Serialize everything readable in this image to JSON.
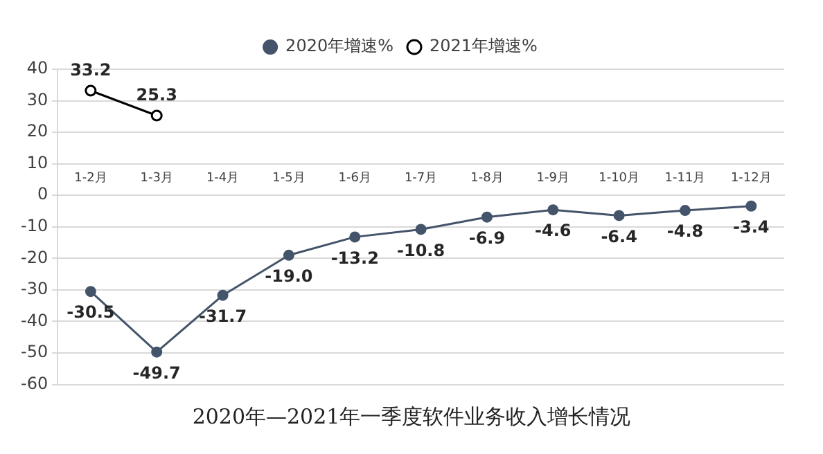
{
  "chart_data": {
    "type": "line",
    "title": "2020年—2021年一季度软件业务收入增长情况",
    "categories": [
      "1-2月",
      "1-3月",
      "1-4月",
      "1-5月",
      "1-6月",
      "1-7月",
      "1-8月",
      "1-9月",
      "1-10月",
      "1-11月",
      "1-12月"
    ],
    "series": [
      {
        "name": "2020年增速%",
        "color": "#44546a",
        "values": [
          -30.5,
          -49.7,
          -31.7,
          -19.0,
          -13.2,
          -10.8,
          -6.9,
          -4.6,
          -6.4,
          -4.8,
          -3.4
        ],
        "value_labels": [
          "-30.5",
          "-49.7",
          "-31.7",
          "-19.0",
          "-13.2",
          "-10.8",
          "-6.9",
          "-4.6",
          "-6.4",
          "-4.8",
          "-3.4"
        ]
      },
      {
        "name": "2021年增速%",
        "color": "#000000",
        "values": [
          33.2,
          25.3,
          null,
          null,
          null,
          null,
          null,
          null,
          null,
          null,
          null
        ],
        "value_labels": [
          "33.2",
          "25.3",
          null,
          null,
          null,
          null,
          null,
          null,
          null,
          null,
          null
        ]
      }
    ],
    "ylim": [
      -60,
      40
    ],
    "yticks": [
      -60,
      -50,
      -40,
      -30,
      -20,
      -10,
      0,
      10,
      20,
      30,
      40
    ],
    "grid": "y",
    "legend": "top",
    "marker": "circle"
  }
}
